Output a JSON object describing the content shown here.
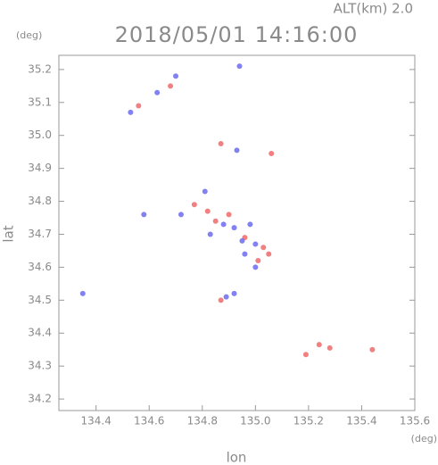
{
  "chart_data": {
    "type": "scatter",
    "title": "2018/05/01 14:16:00",
    "subtitle": "ALT(km)  2.0",
    "y_unit": "(deg)",
    "x_unit": "(deg)",
    "xlabel": "lon",
    "ylabel": "lat",
    "xlim": [
      134.26,
      135.6
    ],
    "ylim": [
      34.165,
      35.243
    ],
    "xticks": [
      134.4,
      134.6,
      134.8,
      {
        "value": 135,
        "label": "135.0"
      },
      135.2,
      135.4,
      135.6
    ],
    "yticks": [
      34.2,
      34.3,
      34.4,
      34.5,
      34.6,
      34.7,
      34.8,
      34.9,
      {
        "value": 35,
        "label": "35.0"
      },
      35.1,
      35.2
    ],
    "series": [
      {
        "color": "#f06a6a",
        "x": [
          134.68,
          134.56,
          134.87,
          135.06,
          134.82,
          134.85,
          135.03,
          135.01,
          134.87,
          135.19,
          135.24,
          135.28,
          135.44,
          134.77,
          134.96,
          134.9,
          135.05
        ],
        "values": [
          35.15,
          35.09,
          34.975,
          34.945,
          34.77,
          34.74,
          34.66,
          34.62,
          34.5,
          34.335,
          34.365,
          34.355,
          34.35,
          34.79,
          34.69,
          34.76,
          34.64
        ]
      },
      {
        "color": "#6b6bef",
        "x": [
          134.53,
          134.63,
          134.93,
          134.81,
          134.72,
          134.88,
          134.92,
          134.95,
          134.98,
          135.0,
          134.89,
          134.92,
          134.35,
          134.7,
          134.96,
          134.83,
          134.58,
          135.0,
          134.94
        ],
        "values": [
          35.07,
          35.13,
          34.955,
          34.83,
          34.76,
          34.73,
          34.72,
          34.68,
          34.73,
          34.6,
          34.51,
          34.52,
          34.52,
          35.18,
          34.64,
          34.7,
          34.76,
          34.67,
          35.21
        ]
      }
    ]
  }
}
